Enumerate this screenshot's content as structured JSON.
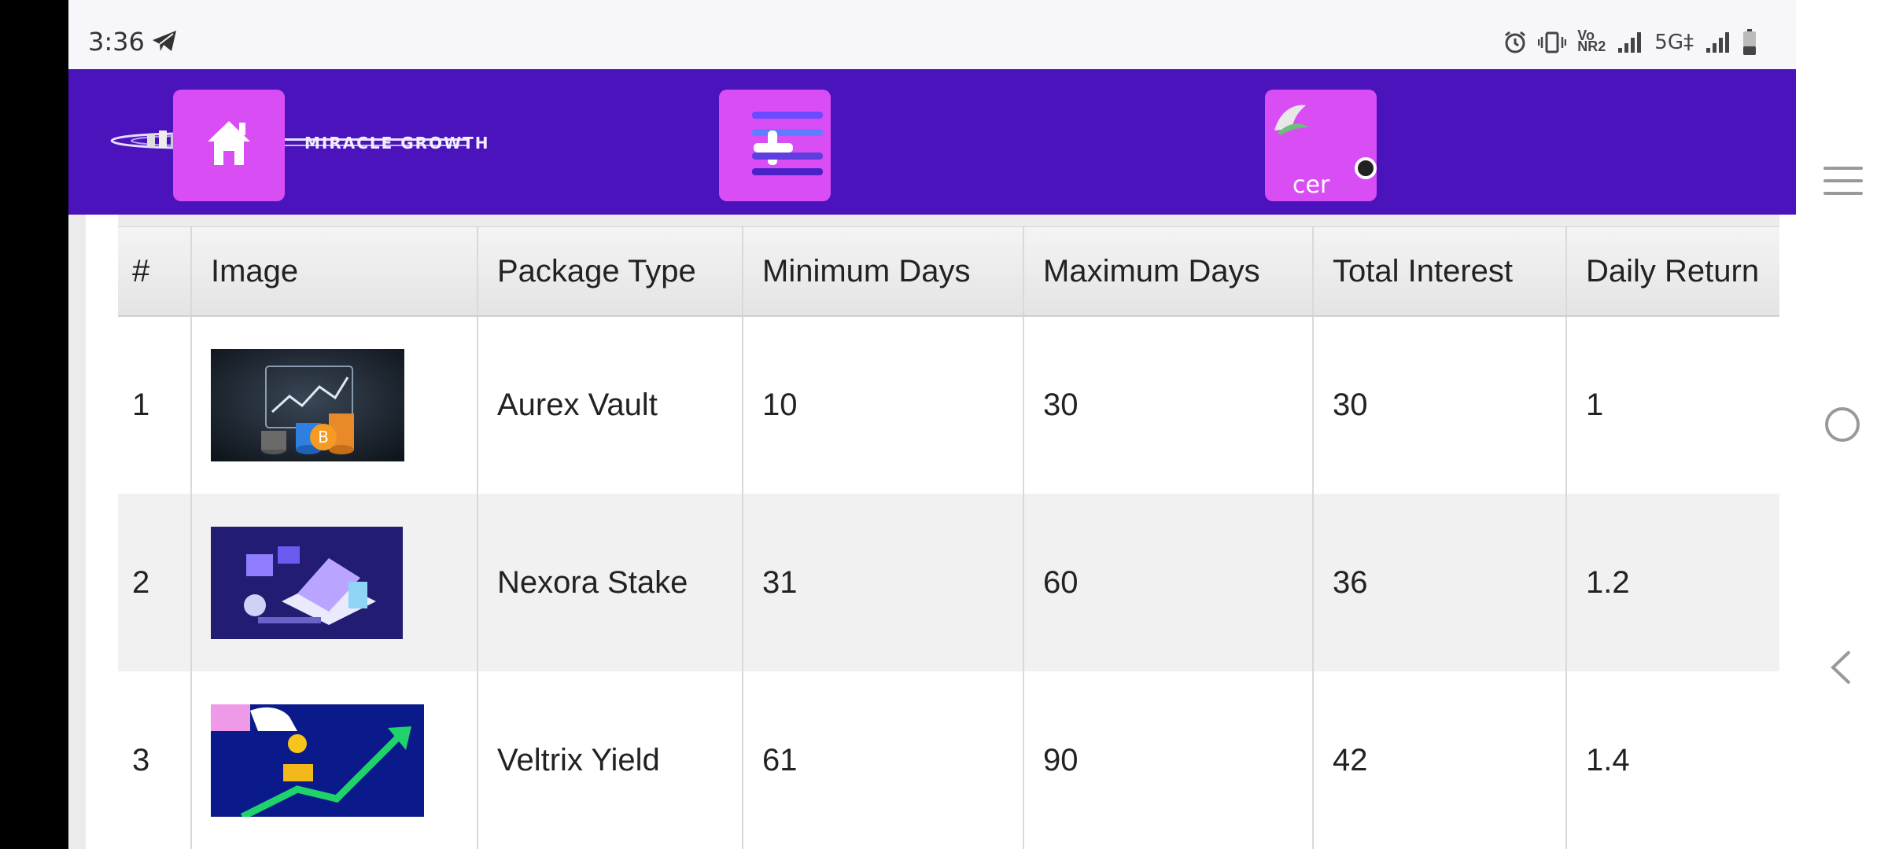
{
  "status_bar": {
    "time": "3:36",
    "icons": [
      "telegram-icon",
      "alarm-icon",
      "vibrate-icon",
      "vonr-icon",
      "signal-icon",
      "5g-icon",
      "signal-icon-2",
      "battery-icon"
    ],
    "vonr_label_top": "Vo",
    "vonr_label_bottom": "NR2",
    "network_label": "5G‡"
  },
  "header": {
    "logo_text": "MIRACLE GROWTH",
    "user_button_text": "cer"
  },
  "table": {
    "headers": [
      "#",
      "Image",
      "Package Type",
      "Minimum Days",
      "Maximum Days",
      "Total Interest",
      "Daily Return"
    ],
    "rows": [
      {
        "num": "1",
        "image": "crypto-chart-coins-image",
        "package": "Aurex Vault",
        "min_days": "10",
        "max_days": "30",
        "total_interest": "30",
        "daily_return": "1"
      },
      {
        "num": "2",
        "image": "isometric-laptop-crypto-image",
        "package": "Nexora Stake",
        "min_days": "31",
        "max_days": "60",
        "total_interest": "36",
        "daily_return": "1.2"
      },
      {
        "num": "3",
        "image": "growth-arrow-coin-image",
        "package": "Veltrix Yield",
        "min_days": "61",
        "max_days": "90",
        "total_interest": "42",
        "daily_return": "1.4"
      }
    ]
  },
  "colors": {
    "header_bg": "#4a13bb",
    "button_bg": "#d94df5"
  }
}
